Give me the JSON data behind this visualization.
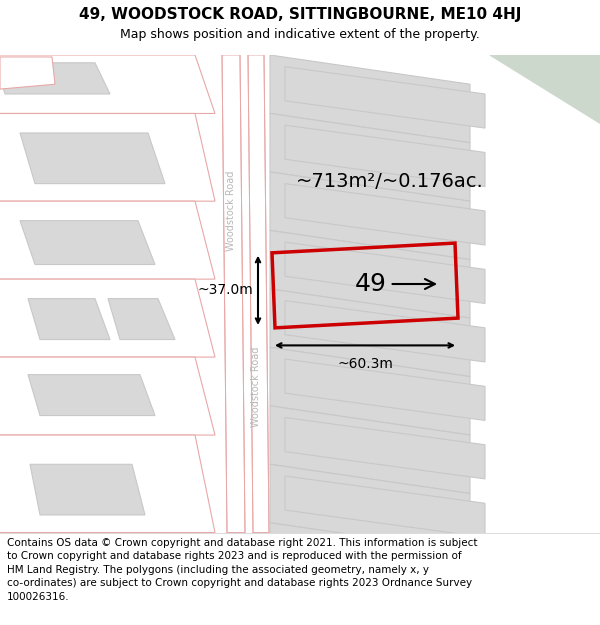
{
  "title": "49, WOODSTOCK ROAD, SITTINGBOURNE, ME10 4HJ",
  "subtitle": "Map shows position and indicative extent of the property.",
  "footer_lines": [
    "Contains OS data © Crown copyright and database right 2021. This information is subject",
    "to Crown copyright and database rights 2023 and is reproduced with the permission of",
    "HM Land Registry. The polygons (including the associated geometry, namely x, y",
    "co-ordinates) are subject to Crown copyright and database rights 2023 Ordnance Survey",
    "100026316."
  ],
  "map_bg": "#faf6f6",
  "building_fill_left": "#ffffff",
  "building_edge_left": "#e8a8a8",
  "building_fill_right": "#d8d8d8",
  "building_edge_right": "#c8c8c8",
  "road_fill": "#ffffff",
  "road_edge": "#e8a8a8",
  "highlight_color": "#cc0000",
  "green_color": "#cdd8cd",
  "road_label_color": "#b8b8b8",
  "dim_color": "#000000",
  "area_text": "~713m²/~0.176ac.",
  "num_text": "49",
  "dim_h_text": "~60.3m",
  "dim_v_text": "~37.0m",
  "road_name": "Woodstock Road",
  "title_fs": 11,
  "subtitle_fs": 9,
  "footer_fs": 7.5,
  "area_fs": 14,
  "num_fs": 18,
  "dim_fs": 10,
  "road_label_fs": 7
}
